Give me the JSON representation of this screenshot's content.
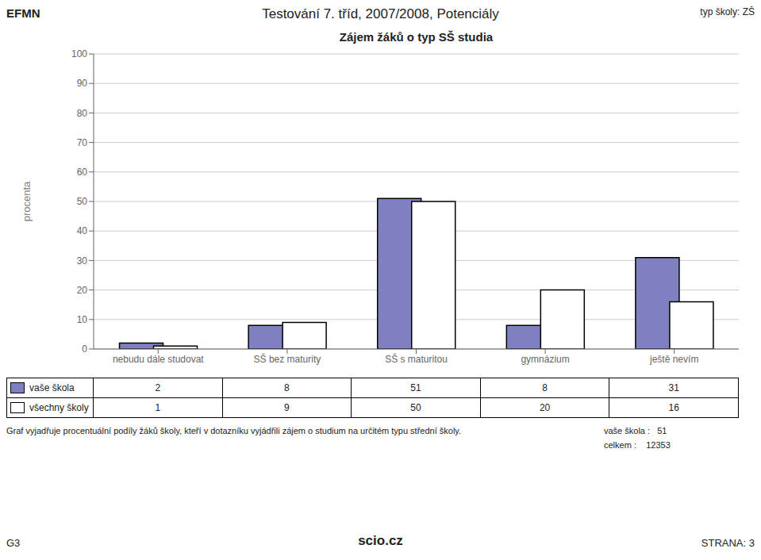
{
  "chart_data": {
    "type": "bar",
    "title": "Zájem žáků o typ SŠ studia",
    "categories": [
      "nebudu dále studovat",
      "SŠ bez maturity",
      "SŠ s maturitou",
      "gymnázium",
      "ještě nevím"
    ],
    "series": [
      {
        "name": "vaše škola",
        "color": "#8080c0",
        "values": [
          2,
          8,
          51,
          8,
          31
        ]
      },
      {
        "name": "všechny školy",
        "color": "#ffffff",
        "values": [
          1,
          9,
          50,
          20,
          16
        ]
      }
    ],
    "ylabel": "procenta",
    "ylim": [
      0,
      100
    ],
    "yticks": [
      0,
      10,
      20,
      30,
      40,
      50,
      60,
      70,
      80,
      90,
      100
    ],
    "grid": true,
    "legend": "bottom",
    "annotations": [
      "EFMN",
      "Testování 7. tříd, 2007/2008, Potenciály",
      "typ školy: ZŠ",
      "Graf vyjadřuje procentuální podíly žáků školy, kteří v dotazníku vyjádřili zájem o studium na určitém typu střední školy.",
      "vaše škola :   51",
      "celkem :    12353",
      "G3",
      "STRANA: 3",
      "scio",
      ".cz"
    ]
  }
}
